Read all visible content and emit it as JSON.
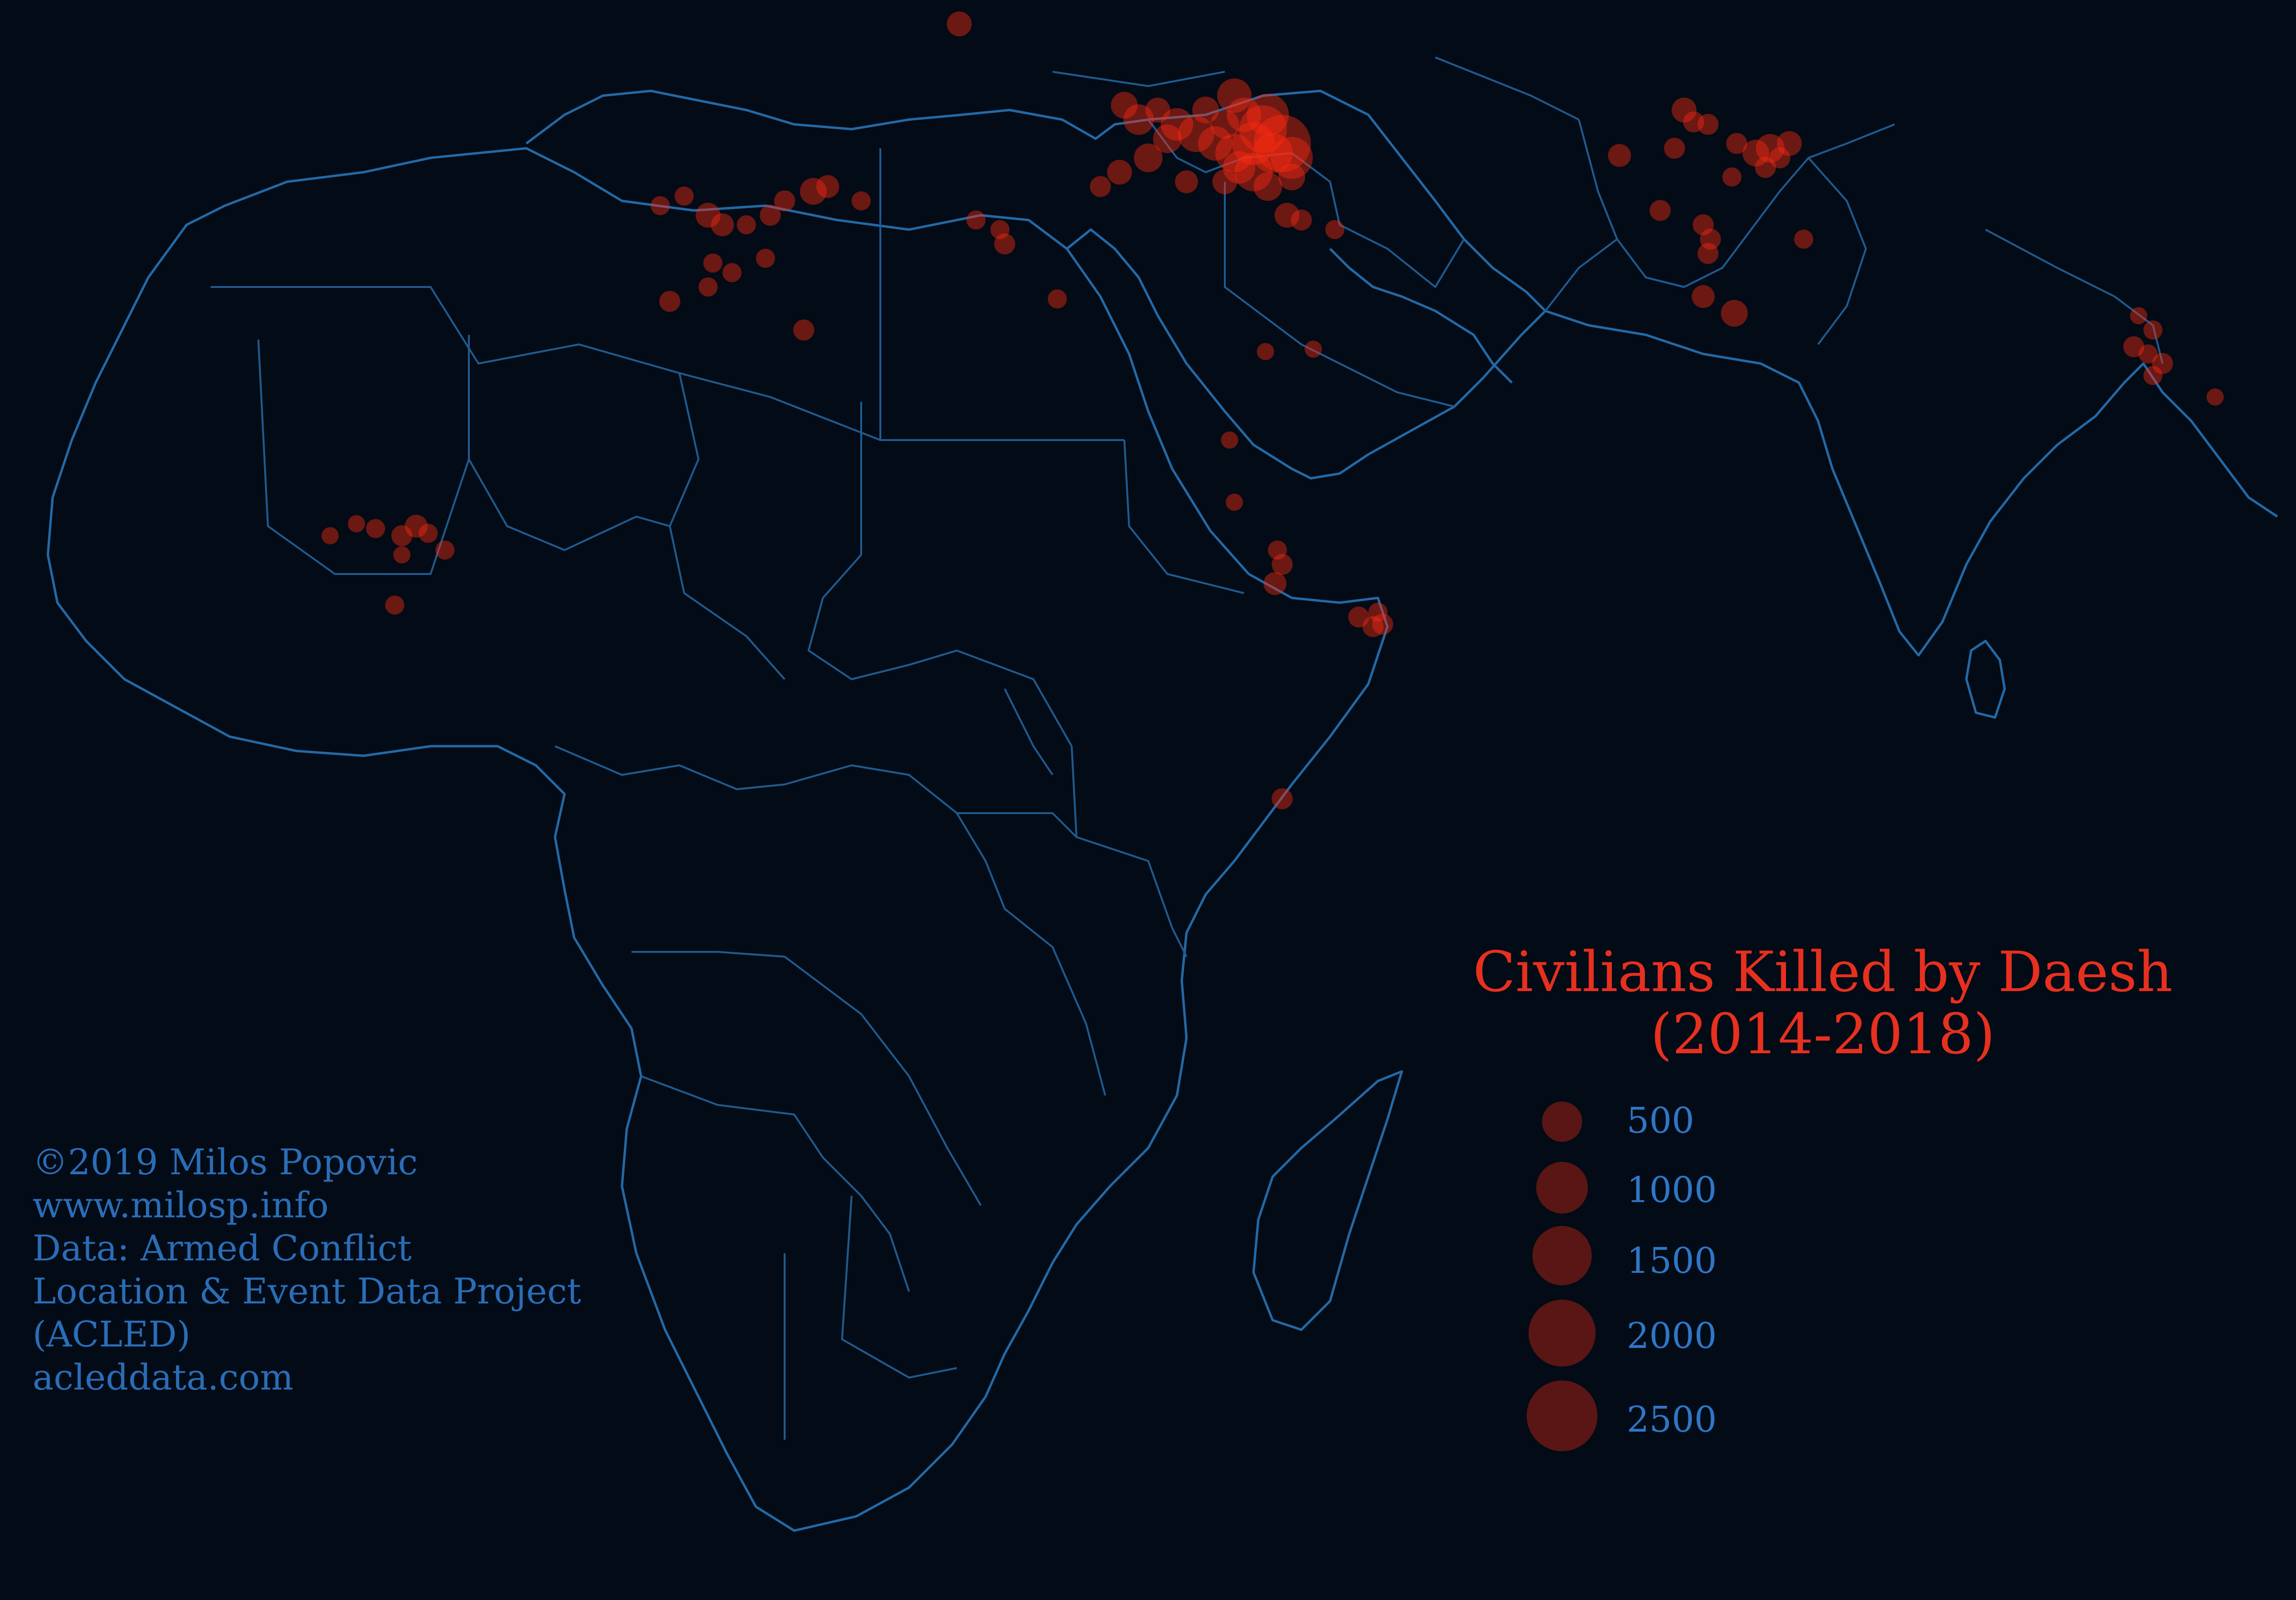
{
  "legend": {
    "title_line1": "Civilians Killed by Daesh",
    "title_line2": "(2014-2018)",
    "sizes": [
      "500",
      "1000",
      "1500",
      "2000",
      "2500"
    ],
    "marker_color": "#ff2a10"
  },
  "credits": [
    "©2019 Milos Popovic",
    "www.milosp.info",
    "Data: Armed Conflict",
    "Location & Event Data Project",
    "(ACLED)",
    "acleddata.com"
  ],
  "colors": {
    "background": "#030b16",
    "borders": "#1f5a8f",
    "legend_labels": "#2f76c6",
    "title": "#e8301f"
  }
}
